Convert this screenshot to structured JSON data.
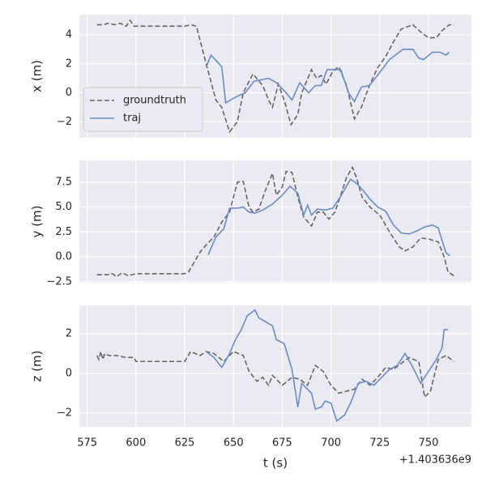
{
  "chart_data": [
    {
      "type": "line",
      "ylabel": "x (m)",
      "legend": "lower left",
      "grid": true,
      "xlim": [
        571,
        772
      ],
      "xticks": [
        575,
        600,
        625,
        650,
        675,
        700,
        725,
        750
      ],
      "ylim": [
        -3.1,
        5.4
      ],
      "yticks": [
        {
          "value": -2,
          "label": "−2"
        },
        0,
        2,
        4
      ],
      "series": [
        {
          "name": "groundtruth",
          "color": "#666666",
          "linestyle": "dashed",
          "x": [
            580,
            583,
            586,
            589,
            592,
            595,
            597,
            599,
            602,
            610,
            620,
            625,
            628,
            631,
            636,
            641,
            644,
            648,
            652,
            655,
            660,
            665,
            668,
            670,
            673,
            676,
            679.5,
            683,
            685,
            690,
            692.6,
            695,
            697.5,
            701,
            704,
            708,
            712,
            715.6,
            719.7,
            723.8,
            728,
            732,
            736,
            742,
            746,
            750,
            754,
            757,
            760.6,
            763
          ],
          "values": [
            4.7,
            4.7,
            4.8,
            4.7,
            4.8,
            4.6,
            5,
            4.6,
            4.6,
            4.6,
            4.6,
            4.6,
            4.7,
            4.6,
            2,
            -0.5,
            -1,
            -2.7,
            -2,
            0,
            1.3,
            0.5,
            -0.5,
            -1,
            0.6,
            -0.5,
            -2.2,
            -1.5,
            0,
            1.6,
            1,
            1.2,
            0.6,
            1.5,
            1.8,
            0.5,
            -1.8,
            -1,
            0.5,
            1.7,
            2.5,
            3.5,
            4.4,
            4.7,
            4.2,
            3.8,
            3.8,
            4.3,
            4.7,
            4.7
          ]
        },
        {
          "name": "traj",
          "color": "#6a8cc4",
          "linestyle": "solid",
          "x": [
            636,
            638.5,
            644,
            646,
            651,
            656,
            660.6,
            668,
            672,
            677,
            680,
            684,
            688.5,
            692,
            695,
            698,
            705,
            709,
            712,
            715.6,
            719.7,
            725,
            730,
            737,
            742,
            745,
            747.5,
            752,
            756,
            759,
            760.6
          ],
          "values": [
            1.8,
            2.6,
            1.8,
            -0.7,
            -0.3,
            0,
            0.8,
            1,
            0.7,
            0,
            -0.5,
            0.7,
            0,
            0.5,
            0.5,
            1.6,
            1.6,
            0,
            -0.6,
            0.4,
            0.5,
            1.4,
            2.3,
            3,
            3,
            2.4,
            2.3,
            2.8,
            2.8,
            2.6,
            2.8
          ]
        }
      ]
    },
    {
      "type": "line",
      "ylabel": "y (m)",
      "grid": true,
      "xlim": [
        571,
        772
      ],
      "xticks": [
        575,
        600,
        625,
        650,
        675,
        700,
        725,
        750
      ],
      "ylim": [
        -2.6,
        9.7
      ],
      "yticks": [
        {
          "value": -2.5,
          "label": "−2.5"
        },
        {
          "value": 0,
          "label": "0.0"
        },
        2.5,
        {
          "value": 5,
          "label": "5.0"
        },
        7.5
      ],
      "series": [
        {
          "color": "#666666",
          "linestyle": "dashed",
          "x": [
            580,
            585,
            588,
            590,
            593,
            596,
            600,
            610,
            620,
            625,
            627,
            630,
            633,
            636,
            640,
            644,
            648,
            650,
            652,
            655,
            658,
            660,
            663,
            666,
            670,
            672,
            675,
            677,
            680,
            683,
            686,
            690,
            693,
            696,
            699,
            702,
            705,
            708,
            711,
            713,
            716,
            720,
            725,
            730,
            735,
            738,
            742,
            746,
            750,
            755,
            758,
            760,
            763
          ],
          "values": [
            -1.8,
            -1.8,
            -1.7,
            -2,
            -1.6,
            -1.9,
            -1.7,
            -1.7,
            -1.7,
            -1.7,
            -1.5,
            -0.5,
            0.5,
            1.2,
            2,
            3.5,
            4.5,
            6,
            7.5,
            7.6,
            5,
            4.5,
            4.8,
            6.5,
            8.4,
            6.2,
            7,
            8.6,
            8.5,
            6,
            4,
            3.1,
            4.5,
            4.5,
            3.8,
            4.5,
            6.2,
            8,
            9,
            8,
            6,
            5,
            4.2,
            2.5,
            1,
            0.6,
            1,
            1.9,
            1.8,
            1.5,
            0,
            -1.5,
            -1.9
          ]
        },
        {
          "color": "#6a8cc4",
          "linestyle": "solid",
          "x": [
            637,
            641,
            645,
            648,
            652,
            655,
            658,
            661,
            665,
            670,
            675,
            679,
            683,
            686,
            688,
            690,
            693,
            697,
            701,
            705,
            710,
            713,
            716,
            720,
            724,
            728,
            732,
            736,
            740,
            744,
            748,
            752,
            755,
            757,
            759,
            761
          ],
          "values": [
            0.2,
            2,
            2.8,
            4.9,
            4.9,
            5,
            4.5,
            4.4,
            4.7,
            5.3,
            6.2,
            7.1,
            6.4,
            4.2,
            5.2,
            4.2,
            4.8,
            4.7,
            4.9,
            6.1,
            7.8,
            7.4,
            6.8,
            5.8,
            5,
            4.6,
            3.2,
            2.4,
            2.3,
            2.6,
            3,
            3.2,
            2.9,
            1.6,
            0.4,
            0.1
          ]
        }
      ]
    },
    {
      "type": "line",
      "ylabel": "z (m)",
      "xlabel": "t (s)",
      "x_offset_label": "+1.403636e9",
      "grid": true,
      "xlim": [
        571,
        772
      ],
      "xticks": [
        575,
        600,
        625,
        650,
        675,
        700,
        725,
        750
      ],
      "ylim": [
        -2.7,
        3.43
      ],
      "yticks": [
        {
          "value": -2,
          "label": "−2"
        },
        0,
        2
      ],
      "series": [
        {
          "color": "#666666",
          "linestyle": "dashed",
          "x": [
            580,
            581,
            582,
            583,
            584,
            586,
            590,
            595,
            599,
            600,
            610,
            620,
            625,
            628,
            633,
            636,
            640,
            645,
            650,
            655,
            658,
            662,
            665,
            668,
            670,
            675,
            680,
            684,
            688,
            692,
            696,
            700,
            704,
            708,
            712,
            716,
            720,
            724,
            728,
            732,
            736,
            740,
            745,
            748,
            751,
            755,
            759,
            763
          ],
          "values": [
            0.9,
            0.7,
            1.1,
            0.7,
            1,
            0.9,
            0.9,
            0.8,
            0.8,
            0.6,
            0.6,
            0.6,
            0.6,
            1.1,
            0.9,
            1.1,
            1,
            0.6,
            1.1,
            0.9,
            0.1,
            -0.4,
            -0.2,
            -0.6,
            -0.1,
            -0.6,
            -0.2,
            -0.3,
            -0.6,
            0.4,
            0.1,
            -0.6,
            -1,
            -0.9,
            -0.8,
            -0.3,
            -0.6,
            -0.2,
            0.3,
            0.2,
            0.5,
            0.8,
            0.6,
            -1.2,
            -0.9,
            0.7,
            0.9,
            0.6
          ]
        },
        {
          "color": "#6a8cc4",
          "linestyle": "solid",
          "x": [
            636,
            640,
            644,
            648,
            651,
            654,
            657,
            661,
            663,
            670,
            672,
            676,
            680,
            683,
            685,
            688,
            690,
            692,
            695,
            697,
            700,
            703,
            707,
            710,
            714,
            718,
            722,
            726,
            730,
            734,
            738,
            742,
            746,
            750,
            754,
            757,
            758,
            760
          ],
          "values": [
            1.1,
            0.8,
            0.3,
            1,
            1.7,
            2.2,
            2.9,
            3.2,
            2.8,
            2.4,
            1.7,
            1.5,
            0.2,
            -1.7,
            -0.5,
            -0.8,
            -1,
            -1.8,
            -1.7,
            -1.4,
            -1.5,
            -2.4,
            -2.1,
            -1.5,
            -0.5,
            -0.4,
            -0.6,
            -0.2,
            0.2,
            0.4,
            1,
            0.3,
            -0.5,
            0.1,
            0.7,
            1.3,
            2.2,
            2.2
          ]
        }
      ]
    }
  ]
}
